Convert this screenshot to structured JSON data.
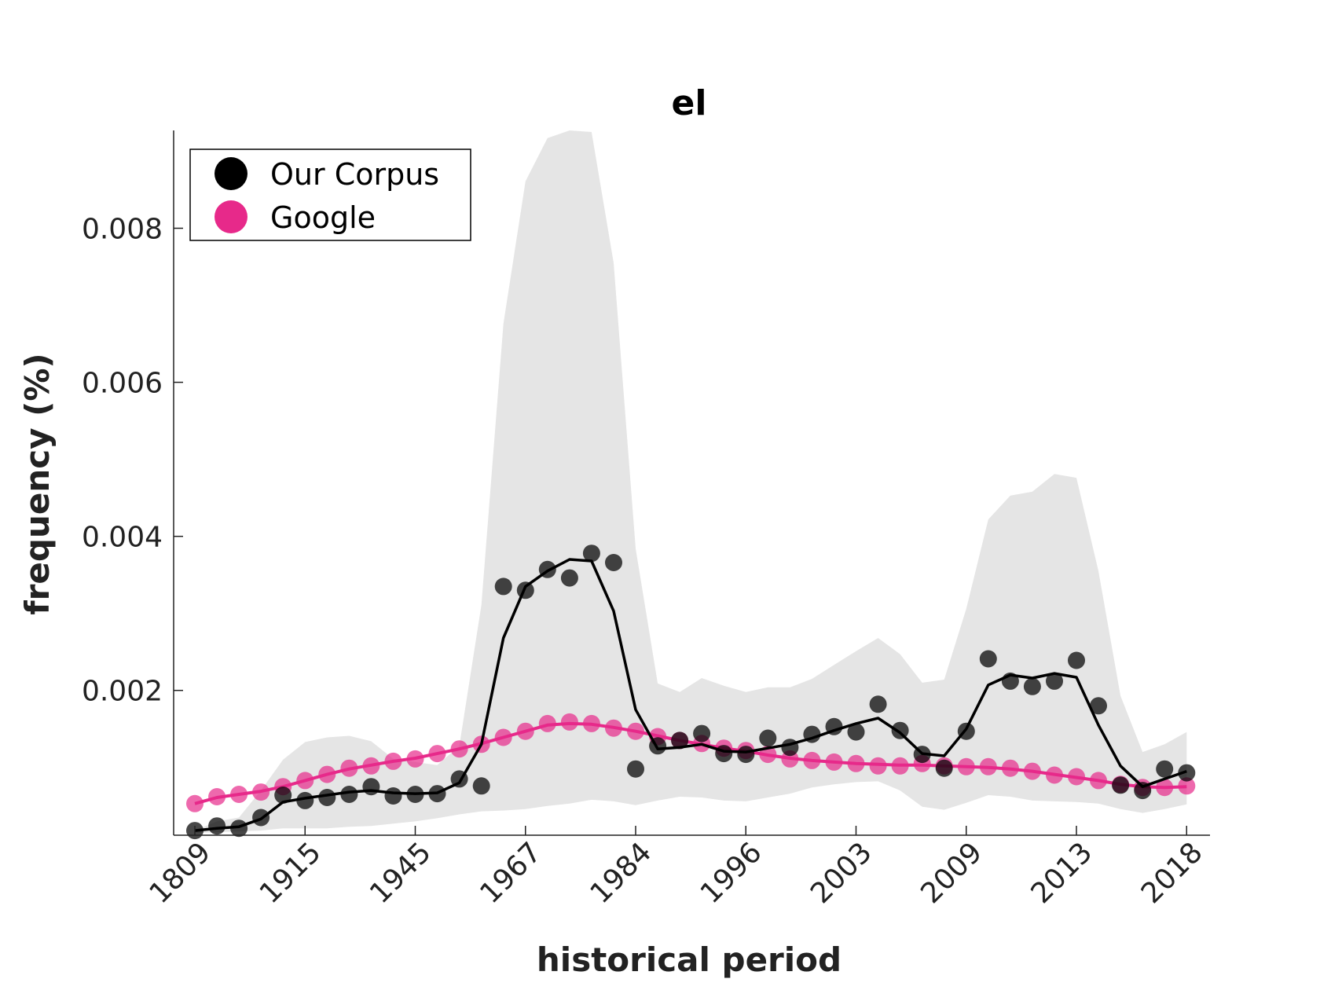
{
  "chart_data": {
    "type": "scatter",
    "title": "el",
    "xlabel": "historical period",
    "ylabel": "frequency (%)",
    "x_tick_labels": [
      "1809",
      "1915",
      "1945",
      "1967",
      "1984",
      "1996",
      "2003",
      "2009",
      "2013",
      "2018"
    ],
    "x_tick_indices": [
      1,
      6,
      11,
      16,
      21,
      26,
      31,
      36,
      41,
      46
    ],
    "ylim": [
      0.00012,
      0.00927
    ],
    "y_ticks": [
      {
        "value": 0.002,
        "label": "0.002"
      },
      {
        "value": 0.004,
        "label": "0.004"
      },
      {
        "value": 0.006,
        "label": "0.006"
      },
      {
        "value": 0.008,
        "label": "0.008"
      }
    ],
    "grid": false,
    "legend_position": "top-left",
    "series": [
      {
        "name": "Our Corpus",
        "color": "#000000",
        "points": [
          0.00018,
          0.00024,
          0.00021,
          0.00035,
          0.00064,
          0.00057,
          0.00061,
          0.00065,
          0.00075,
          0.00063,
          0.00065,
          0.00066,
          0.00085,
          0.00076,
          0.00335,
          0.0033,
          0.00357,
          0.00346,
          0.00378,
          0.00366,
          0.00098,
          0.00128,
          0.00135,
          0.00144,
          0.00118,
          0.00117,
          0.00138,
          0.00126,
          0.00143,
          0.00153,
          0.00146,
          0.00182,
          0.00148,
          0.00117,
          0.00099,
          0.00147,
          0.00241,
          0.00212,
          0.00205,
          0.00212,
          0.00239,
          0.0018,
          0.00077,
          0.0007,
          0.00098,
          0.00093
        ],
        "smooth": [
          0.00018,
          0.00021,
          0.00023,
          0.00033,
          0.00055,
          0.0006,
          0.00064,
          0.00068,
          0.0007,
          0.00067,
          0.00066,
          0.00067,
          0.0008,
          0.0013,
          0.00268,
          0.00335,
          0.00355,
          0.0037,
          0.00368,
          0.00303,
          0.00175,
          0.00124,
          0.00126,
          0.0013,
          0.00121,
          0.0012,
          0.00125,
          0.0013,
          0.00138,
          0.00148,
          0.00157,
          0.00164,
          0.00145,
          0.00118,
          0.00115,
          0.0015,
          0.00207,
          0.0022,
          0.00216,
          0.00222,
          0.00217,
          0.00155,
          0.00102,
          0.00075,
          0.00085,
          0.00095
        ],
        "band_upper": [
          0.00018,
          0.0003,
          0.00035,
          0.0007,
          0.0011,
          0.00133,
          0.00139,
          0.00141,
          0.00134,
          0.00111,
          0.00107,
          0.00103,
          0.00128,
          0.00311,
          0.00676,
          0.00861,
          0.00917,
          0.00927,
          0.00925,
          0.00755,
          0.00384,
          0.00209,
          0.00198,
          0.00216,
          0.00206,
          0.00198,
          0.00204,
          0.00204,
          0.00215,
          0.00233,
          0.00251,
          0.00268,
          0.00247,
          0.0021,
          0.00214,
          0.00306,
          0.00422,
          0.00453,
          0.00458,
          0.00481,
          0.00476,
          0.00355,
          0.00193,
          0.0012,
          0.0013,
          0.00146
        ],
        "band_lower": [
          0.00015,
          0.00016,
          0.00017,
          0.00018,
          0.00021,
          0.00021,
          0.00021,
          0.00023,
          0.00024,
          0.00027,
          0.0003,
          0.00034,
          0.00039,
          0.00043,
          0.00044,
          0.00046,
          0.0005,
          0.00053,
          0.00058,
          0.00056,
          0.00051,
          0.00057,
          0.00062,
          0.00061,
          0.00057,
          0.00056,
          0.00061,
          0.00066,
          0.00074,
          0.00078,
          0.00081,
          0.00082,
          0.0007,
          0.00049,
          0.00045,
          0.00054,
          0.00064,
          0.00062,
          0.00057,
          0.00056,
          0.00055,
          0.00053,
          0.00046,
          0.00041,
          0.00046,
          0.00052
        ]
      },
      {
        "name": "Google",
        "color": "#e7298a",
        "points": [
          0.00053,
          0.00062,
          0.00065,
          0.00068,
          0.00075,
          0.00083,
          0.00091,
          0.00099,
          0.00102,
          0.00108,
          0.00111,
          0.00118,
          0.00124,
          0.0013,
          0.00139,
          0.00147,
          0.00157,
          0.00159,
          0.00157,
          0.00151,
          0.00147,
          0.0014,
          0.00135,
          0.00131,
          0.00125,
          0.00122,
          0.00117,
          0.00111,
          0.00109,
          0.00107,
          0.00105,
          0.00102,
          0.00102,
          0.00105,
          0.00102,
          0.00101,
          0.00101,
          0.00099,
          0.00095,
          0.0009,
          0.00088,
          0.00083,
          0.00078,
          0.00074,
          0.00074,
          0.00076
        ],
        "smooth": [
          0.00053,
          0.00061,
          0.00065,
          0.00069,
          0.00075,
          0.00083,
          0.00091,
          0.00098,
          0.00103,
          0.00108,
          0.00112,
          0.00118,
          0.00124,
          0.00131,
          0.00139,
          0.00147,
          0.00155,
          0.00157,
          0.00156,
          0.00152,
          0.00147,
          0.00141,
          0.00135,
          0.0013,
          0.00125,
          0.00121,
          0.00116,
          0.00112,
          0.00109,
          0.00107,
          0.00105,
          0.00104,
          0.00103,
          0.00103,
          0.00102,
          0.00101,
          0.001,
          0.00098,
          0.00095,
          0.00091,
          0.00087,
          0.00083,
          0.00078,
          0.00075,
          0.00074,
          0.00075
        ]
      }
    ]
  }
}
